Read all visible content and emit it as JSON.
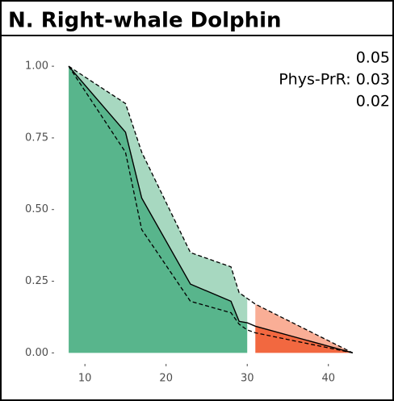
{
  "chart_data": {
    "type": "line",
    "title": "N. Right-whale Dolphin",
    "annotations": [
      "0.05",
      "Phys-PrR: 0.03",
      "0.02"
    ],
    "x": [
      8,
      15,
      17,
      23,
      28,
      29,
      30,
      31,
      43
    ],
    "series": [
      {
        "color": "#000000",
        "dash": false,
        "values": [
          1.0,
          0.77,
          0.54,
          0.24,
          0.18,
          0.11,
          0.105,
          0.093,
          0.0
        ]
      },
      {
        "color": "#000000",
        "dash": true,
        "values": [
          1.0,
          0.87,
          0.7,
          0.35,
          0.3,
          0.21,
          0.19,
          0.17,
          0.0
        ]
      },
      {
        "color": "#000000",
        "dash": true,
        "values": [
          1.0,
          0.7,
          0.43,
          0.18,
          0.14,
          0.1,
          0.08,
          0.07,
          0.0
        ]
      }
    ],
    "bands": [
      {
        "x_from": 8,
        "x_to": 30,
        "color_low": "#58b58c",
        "color_high": "#a7d8c0"
      },
      {
        "x_from": 31,
        "x_to": 43,
        "color_low": "#f26840",
        "color_high": "#f9ae96"
      }
    ],
    "xlim": [
      6.5,
      45.3
    ],
    "ylim": [
      -0.03,
      1.02
    ],
    "xticks": [
      10,
      20,
      30,
      40
    ],
    "yticks": [
      {
        "value": 0,
        "label": "0.00"
      },
      {
        "value": 0.25,
        "label": "0.25"
      },
      {
        "value": 0.5,
        "label": "0.50"
      },
      {
        "value": 0.75,
        "label": "0.75"
      },
      {
        "value": 1,
        "label": "1.00"
      }
    ]
  }
}
